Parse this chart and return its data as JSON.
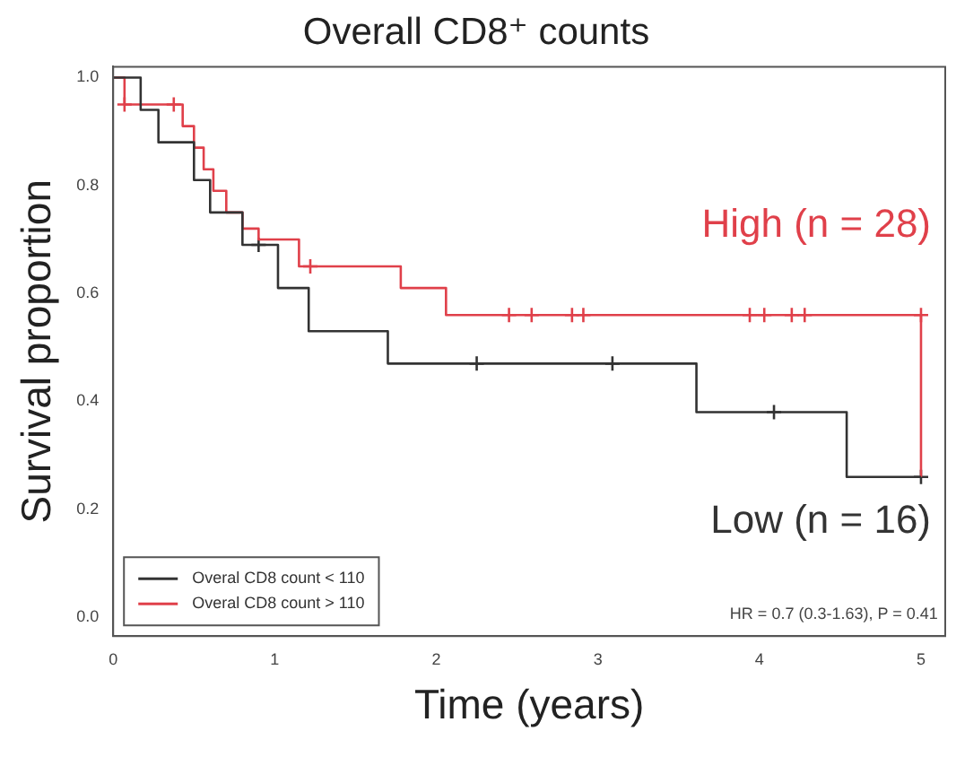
{
  "chart_data": {
    "type": "step",
    "title": "Overall CD8⁺ counts",
    "xlabel": "Time (years)",
    "ylabel": "Survival proportion",
    "xlim": [
      0,
      5.15
    ],
    "xticks": [
      0,
      1,
      2,
      3,
      4,
      5
    ],
    "ylim": [
      -0.035,
      1.02
    ],
    "yticks": [
      {
        "value": 0,
        "label": "0.0"
      },
      0.2,
      0.4,
      0.6,
      0.8,
      {
        "value": 1,
        "label": "1.0"
      }
    ],
    "grid": false,
    "legend": "bottom left",
    "line_style": "solid",
    "series": [
      {
        "name": "Overal CD8 count < 110",
        "color": "#333333",
        "x": [
          0,
          0.17,
          0.28,
          0.5,
          0.6,
          0.8,
          1.02,
          1.21,
          1.7,
          3.61,
          4.54,
          5.0
        ],
        "values": [
          1,
          0.94,
          0.88,
          0.81,
          0.75,
          0.69,
          0.61,
          0.53,
          0.47,
          0.38,
          0.26,
          0.26
        ]
      },
      {
        "name": "Overal CD8 count > 110",
        "color": "#e0404a",
        "x": [
          0,
          0.07,
          0.43,
          0.5,
          0.56,
          0.62,
          0.7,
          0.8,
          0.9,
          1.15,
          1.78,
          2.06,
          5.0
        ],
        "values": [
          1,
          0.95,
          0.91,
          0.87,
          0.83,
          0.79,
          0.75,
          0.72,
          0.7,
          0.65,
          0.61,
          0.56,
          0.26
        ]
      },
      {
        "type": "scatter",
        "marker": "cross",
        "color": "#333333",
        "x": [
          0.9,
          2.25,
          3.09,
          4.09,
          5.0
        ],
        "values": [
          0.69,
          0.47,
          0.47,
          0.38,
          0.26
        ]
      },
      {
        "type": "scatter",
        "marker": "cross",
        "color": "#e0404a",
        "x": [
          0.07,
          0.375,
          1.22,
          2.45,
          2.59,
          2.84,
          2.91,
          3.94,
          4.03,
          4.2,
          4.28,
          5.0
        ],
        "values": [
          0.95,
          0.95,
          0.65,
          0.56,
          0.56,
          0.56,
          0.56,
          0.56,
          0.56,
          0.56,
          0.56,
          0.56
        ]
      }
    ],
    "annotations": [
      "High (n = 28)",
      "Low (n = 16)",
      "HR = 0.7 (0.3-1.63), P = 0.41"
    ]
  }
}
